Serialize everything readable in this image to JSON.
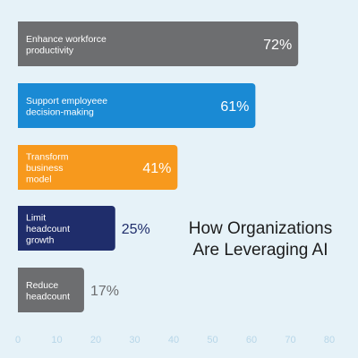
{
  "chart_data": {
    "type": "bar",
    "orientation": "horizontal",
    "title": [
      "How Organizations",
      "Are Leveraging AI"
    ],
    "xlabel": "",
    "ylabel": "",
    "xlim": [
      0,
      80
    ],
    "x_ticks": [
      0,
      10,
      20,
      30,
      40,
      50,
      60,
      70,
      80
    ],
    "grid": false,
    "categories": [
      [
        "Enhance workforce",
        "productivity"
      ],
      [
        "Support employeee",
        "decision-making"
      ],
      [
        "Transform",
        "business",
        "model"
      ],
      [
        "Limit",
        "headcount",
        "growth"
      ],
      [
        "Reduce",
        "headcount"
      ]
    ],
    "values": [
      72,
      61,
      41,
      25,
      17
    ],
    "value_labels": [
      "72%",
      "61%",
      "41%",
      "25%",
      "17%"
    ],
    "bar_colors": [
      "#6d6e70",
      "#1a8ad4",
      "#f7991d",
      "#1f2d6b",
      "#6d6e70"
    ],
    "value_label_position": [
      "inside",
      "inside",
      "inside",
      "outside",
      "outside"
    ],
    "value_label_colors": [
      "#ffffff",
      "#ffffff",
      "#ffffff",
      "#1f2d6b",
      "#6d6e70"
    ]
  }
}
